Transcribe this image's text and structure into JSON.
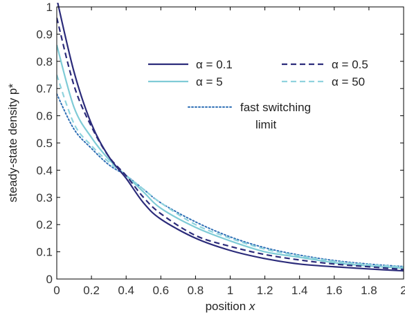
{
  "chart_data": {
    "type": "line",
    "xlabel_text": "position ",
    "xlabel_var": "x",
    "ylabel": "steady-state density p*",
    "xlim": [
      0,
      2
    ],
    "ylim": [
      0,
      1
    ],
    "xticks": [
      0,
      0.2,
      0.4,
      0.6,
      0.8,
      1,
      1.2,
      1.4,
      1.6,
      1.8,
      2
    ],
    "xtick_labels": [
      "0",
      "0.2",
      "0.4",
      "0.6",
      "0.8",
      "1",
      "1.2",
      "1.4",
      "1.6",
      "1.8",
      "2"
    ],
    "yticks": [
      0,
      0.1,
      0.2,
      0.3,
      0.4,
      0.5,
      0.6,
      0.7,
      0.8,
      0.9,
      1
    ],
    "ytick_labels": [
      "0",
      "0.1",
      "0.2",
      "0.3",
      "0.4",
      "0.5",
      "0.6",
      "0.7",
      "0.8",
      "0.9",
      "1"
    ],
    "grid": false,
    "legend_position": "top-right",
    "series": [
      {
        "name": "α = 0.1",
        "color": "#2b2b7a",
        "style": "solid",
        "x": [
          0,
          0.1,
          0.2,
          0.3,
          0.4,
          0.5,
          0.6,
          0.8,
          1.0,
          1.2,
          1.4,
          1.6,
          1.8,
          2.0
        ],
        "y": [
          1.03,
          0.76,
          0.57,
          0.45,
          0.37,
          0.28,
          0.22,
          0.15,
          0.105,
          0.075,
          0.055,
          0.045,
          0.037,
          0.03
        ]
      },
      {
        "name": "α = 0.5",
        "color": "#2b2b7a",
        "style": "dashed",
        "x": [
          0,
          0.1,
          0.2,
          0.3,
          0.4,
          0.5,
          0.6,
          0.8,
          1.0,
          1.2,
          1.4,
          1.6,
          1.8,
          2.0
        ],
        "y": [
          0.96,
          0.71,
          0.56,
          0.45,
          0.38,
          0.3,
          0.24,
          0.16,
          0.12,
          0.09,
          0.07,
          0.055,
          0.045,
          0.035
        ]
      },
      {
        "name": "α = 5",
        "color": "#7fcbd6",
        "style": "solid",
        "x": [
          0,
          0.1,
          0.2,
          0.3,
          0.4,
          0.5,
          0.6,
          0.8,
          1.0,
          1.2,
          1.4,
          1.6,
          1.8,
          2.0
        ],
        "y": [
          0.86,
          0.63,
          0.52,
          0.44,
          0.38,
          0.32,
          0.26,
          0.19,
          0.14,
          0.1,
          0.08,
          0.06,
          0.048,
          0.04
        ]
      },
      {
        "name": "α = 50",
        "color": "#8fd3de",
        "style": "dashed",
        "x": [
          0,
          0.1,
          0.2,
          0.3,
          0.4,
          0.5,
          0.6,
          0.8,
          1.0,
          1.2,
          1.4,
          1.6,
          1.8,
          2.0
        ],
        "y": [
          0.75,
          0.57,
          0.49,
          0.43,
          0.38,
          0.33,
          0.28,
          0.2,
          0.15,
          0.11,
          0.085,
          0.065,
          0.053,
          0.045
        ]
      },
      {
        "name": "fast switching limit",
        "legend_lines": [
          "fast switching",
          "limit"
        ],
        "color": "#2f6fb5",
        "style": "dotted",
        "x": [
          0,
          0.1,
          0.2,
          0.3,
          0.4,
          0.5,
          0.6,
          0.8,
          1.0,
          1.2,
          1.4,
          1.6,
          1.8,
          2.0
        ],
        "y": [
          0.68,
          0.55,
          0.48,
          0.42,
          0.38,
          0.33,
          0.28,
          0.21,
          0.155,
          0.115,
          0.088,
          0.068,
          0.055,
          0.046
        ]
      }
    ]
  }
}
